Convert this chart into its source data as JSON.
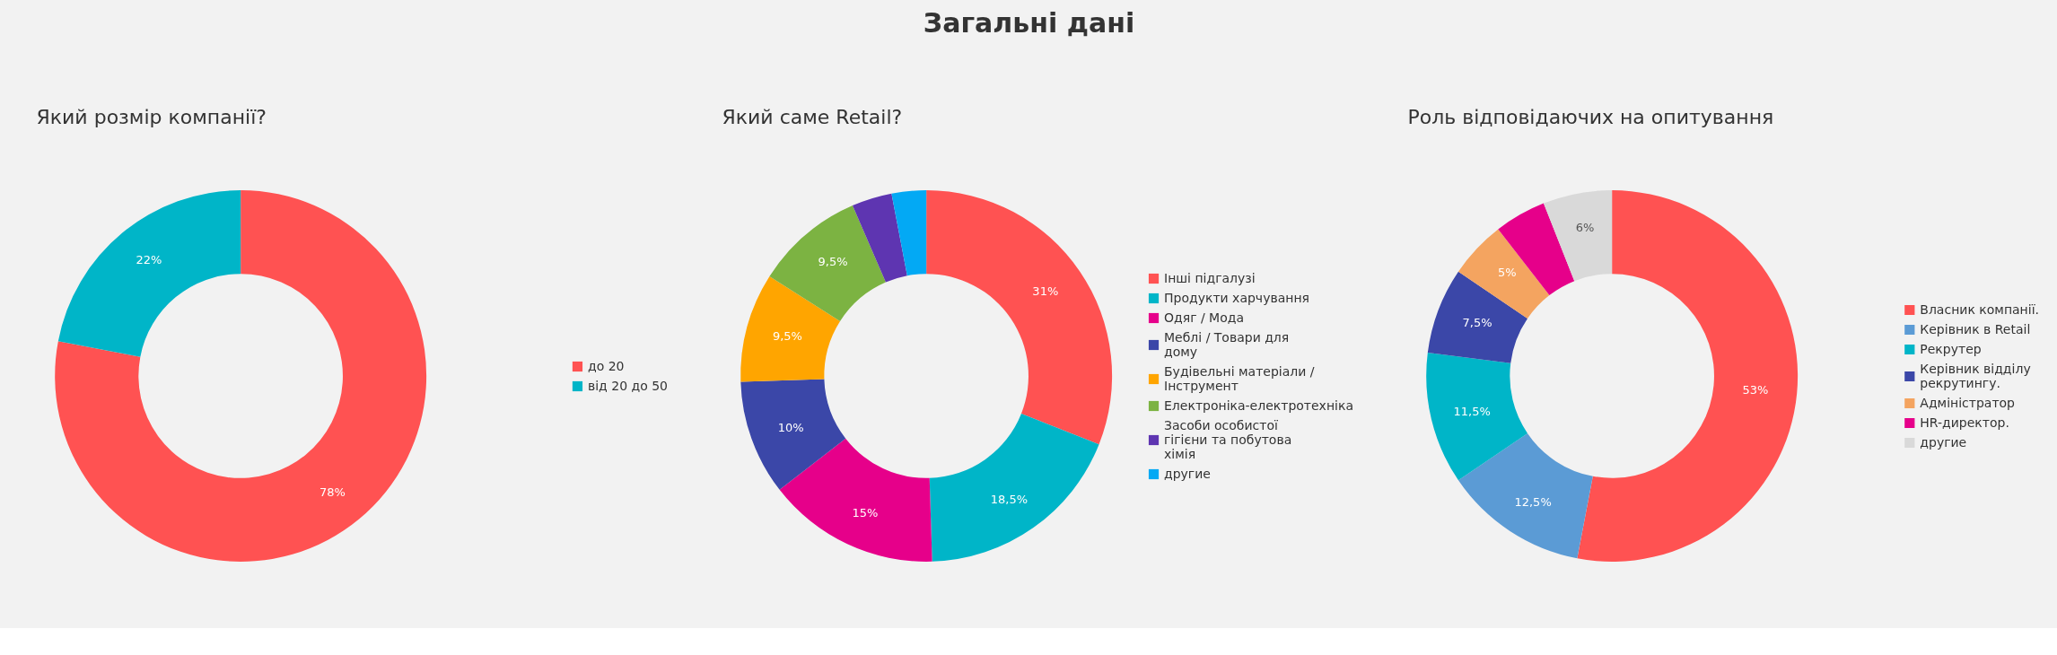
{
  "chart_data": [
    {
      "type": "other",
      "title": "Загальні дані"
    },
    {
      "type": "donut",
      "title": "Який розмір компанії?",
      "categories": [
        "до 20",
        "від 20 до 50"
      ],
      "values": [
        78,
        22
      ],
      "colors": [
        "#ff5252",
        "#00b5c8"
      ],
      "value_labels": [
        "78%",
        "22%"
      ],
      "legend": "right"
    },
    {
      "type": "donut",
      "title": "Який саме Retail?",
      "categories": [
        "Інші підгалузі",
        "Продукти харчування",
        "Одяг / Мода",
        "Меблі / Товари для дому",
        "Будівельні матеріали / Інструмент",
        "Електроніка-електротехніка",
        "Засоби особистої гігієни та побутова хімія",
        "другие"
      ],
      "values": [
        31,
        18.5,
        15,
        10,
        9.5,
        9.5,
        3.5,
        3
      ],
      "colors": [
        "#ff5252",
        "#00b5c8",
        "#e6008a",
        "#3b47a8",
        "#ffa500",
        "#7cb342",
        "#5e35b1",
        "#03a9f4"
      ],
      "value_labels": [
        "31%",
        "18,5%",
        "15%",
        "10%",
        "9,5%",
        "9,5%",
        null,
        null
      ],
      "legend": "right"
    },
    {
      "type": "donut",
      "title": "Роль відповідаючих на опитування",
      "categories": [
        "Власник компанії.",
        "Керівник в Retail",
        "Рекрутер",
        "Керівник відділу рекрутингу.",
        "Адміністратор",
        "HR-директор.",
        "другие"
      ],
      "values": [
        53,
        12.5,
        11.5,
        7.5,
        5,
        4.5,
        6
      ],
      "colors": [
        "#ff5252",
        "#5b9bd5",
        "#00b5c8",
        "#3b47a8",
        "#f4a460",
        "#e6008a",
        "#d9d9d9"
      ],
      "value_labels": [
        "53%",
        "12,5%",
        "11,5%",
        "7,5%",
        "5%",
        null,
        "6%"
      ],
      "legend": "right"
    }
  ]
}
